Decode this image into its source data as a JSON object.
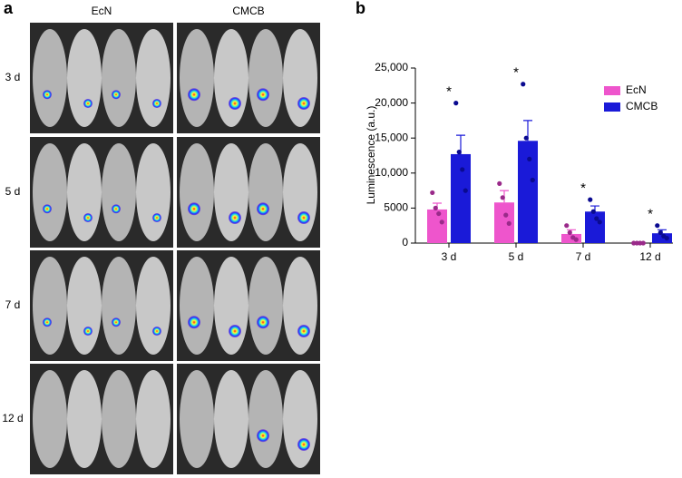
{
  "panels": {
    "a": {
      "label": "a",
      "columns": [
        "EcN",
        "CMCB"
      ],
      "rows": [
        "3 d",
        "5 d",
        "7 d",
        "12 d"
      ]
    }
  },
  "chart_data": {
    "type": "bar",
    "panel_label": "b",
    "ylabel": "Luminescence (a.u.)",
    "categories": [
      "3 d",
      "5 d",
      "7 d",
      "12 d"
    ],
    "ylim": [
      0,
      25000
    ],
    "yticks": [
      0,
      5000,
      {
        "value": 10000,
        "label": "10,000"
      },
      {
        "value": 15000,
        "label": "15,000"
      },
      {
        "value": 20000,
        "label": "20,000"
      },
      {
        "value": 25000,
        "label": "25,000"
      }
    ],
    "legend": "upper right",
    "significance": [
      "*",
      "*",
      "*",
      "*"
    ],
    "series": [
      {
        "name": "EcN",
        "color": "#ee55cc",
        "point_color": "#9a2a8a",
        "values": [
          4800,
          5800,
          1300,
          0
        ],
        "errors": [
          900,
          1700,
          600,
          0
        ],
        "points": [
          [
            7200,
            5000,
            4200,
            3000
          ],
          [
            8500,
            6500,
            4000,
            2800
          ],
          [
            2500,
            1500,
            800,
            500
          ],
          [
            0,
            0,
            0,
            0
          ]
        ]
      },
      {
        "name": "CMCB",
        "color": "#1a1ad8",
        "point_color": "#0a0a90",
        "values": [
          12700,
          14600,
          4500,
          1400
        ],
        "errors": [
          2700,
          2900,
          800,
          500
        ],
        "points": [
          [
            20000,
            13000,
            10500,
            7500
          ],
          [
            22700,
            15000,
            12000,
            9000
          ],
          [
            6200,
            4500,
            3500,
            3000
          ],
          [
            2500,
            1500,
            1000,
            700
          ]
        ]
      }
    ]
  }
}
